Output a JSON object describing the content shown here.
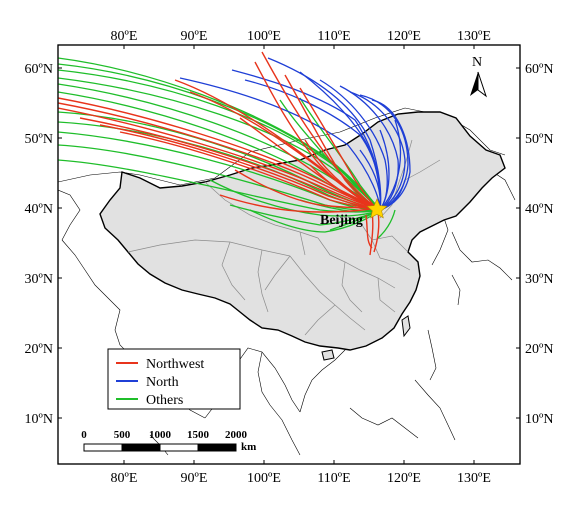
{
  "map": {
    "lon_ticks": [
      "80ºE",
      "90ºE",
      "100ºE",
      "110ºE",
      "120ºE",
      "130ºE"
    ],
    "lat_ticks": [
      "60ºN",
      "50ºN",
      "40ºN",
      "30ºN",
      "20ºN",
      "10ºN"
    ],
    "lon_values": [
      80,
      90,
      100,
      110,
      120,
      130
    ],
    "lat_values": [
      60,
      50,
      40,
      30,
      20,
      10
    ],
    "extent": {
      "lon": [
        71,
        136
      ],
      "lat": [
        3,
        63
      ]
    },
    "city": {
      "name": "Beijing",
      "lon": 116.4,
      "lat": 39.9
    },
    "north_label": "N",
    "colors": {
      "land": "#e1e1e1",
      "border": "#000000",
      "province": "#8c8c8c",
      "star": "#ffd400"
    }
  },
  "legend": {
    "items": [
      {
        "label": "Northwest",
        "color": "#e8341c"
      },
      {
        "label": "North",
        "color": "#1f3fd6"
      },
      {
        "label": "Others",
        "color": "#1fbe2a"
      }
    ]
  },
  "scale_bar": {
    "values": [
      "0",
      "500",
      "1000",
      "1500",
      "2000"
    ],
    "unit": "km"
  }
}
